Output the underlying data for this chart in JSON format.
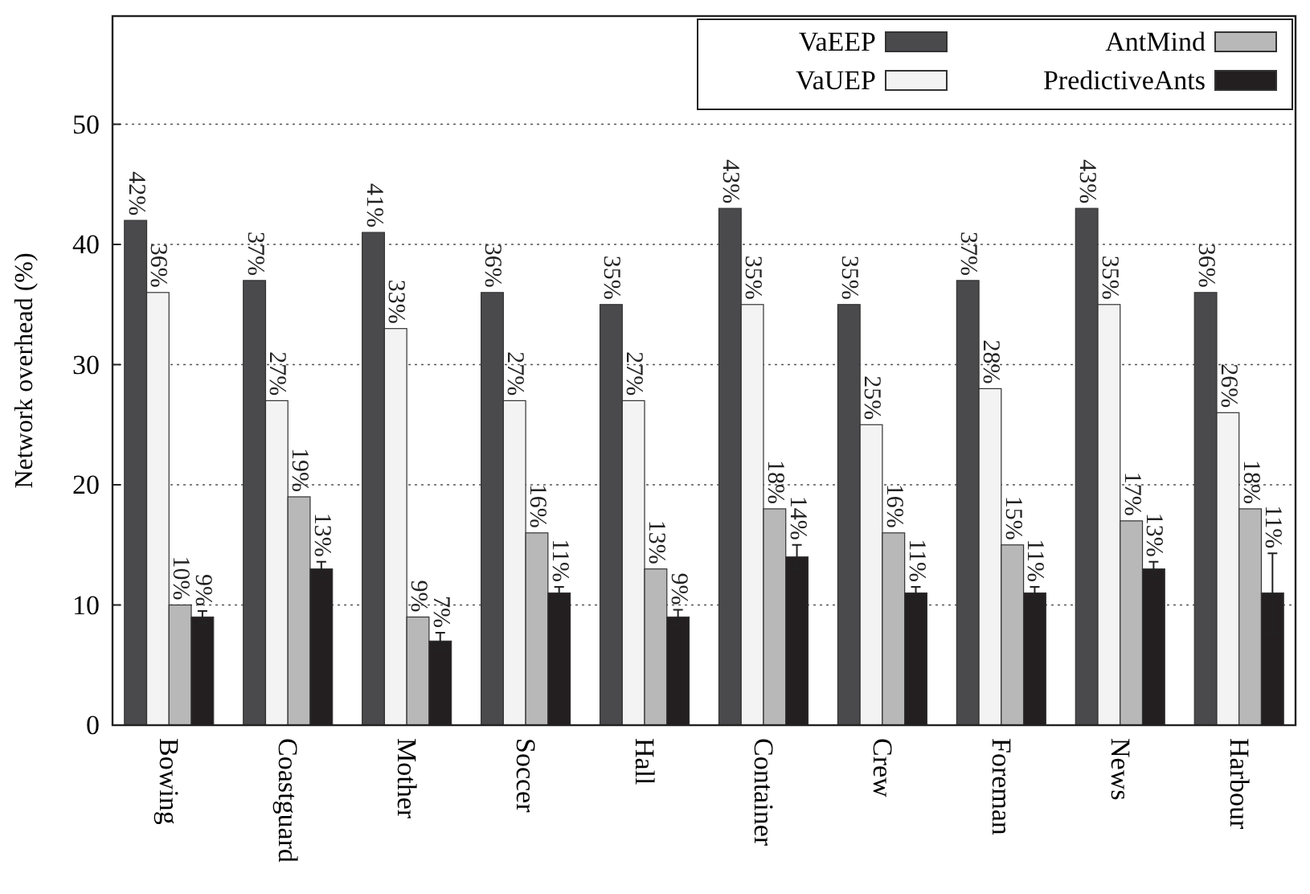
{
  "chart_data": {
    "type": "bar",
    "ylabel": "Network overhead (%)",
    "categories": [
      "Bowing",
      "Coastguard",
      "Mother",
      "Soccer",
      "Hall",
      "Container",
      "Crew",
      "Foreman",
      "News",
      "Harbour"
    ],
    "series": [
      {
        "name": "VaEEP",
        "color": "#4a4a4c",
        "values": [
          42,
          37,
          41,
          36,
          35,
          43,
          35,
          37,
          43,
          36
        ],
        "value_labels": [
          "42%",
          "37%",
          "41%",
          "36%",
          "35%",
          "43%",
          "35%",
          "37%",
          "43%",
          "36%"
        ]
      },
      {
        "name": "VaUEP",
        "color": "#f2f3f2",
        "values": [
          36,
          27,
          33,
          27,
          27,
          35,
          25,
          28,
          35,
          26
        ],
        "value_labels": [
          "36%",
          "27%",
          "33%",
          "27%",
          "27%",
          "35%",
          "25%",
          "28%",
          "35%",
          "26%"
        ]
      },
      {
        "name": "AntMind",
        "color": "#b8b8b8",
        "values": [
          10,
          19,
          9,
          16,
          13,
          18,
          16,
          15,
          17,
          18
        ],
        "value_labels": [
          "10%",
          "19%",
          "9%",
          "16%",
          "13%",
          "18%",
          "16%",
          "15%",
          "17%",
          "18%"
        ]
      },
      {
        "name": "PredictiveAnts",
        "color": "#231f20",
        "values": [
          9,
          13,
          7,
          11,
          9,
          14,
          11,
          11,
          13,
          11
        ],
        "value_labels": [
          "9%",
          "13%",
          "7%",
          "11%",
          "9%",
          "14%",
          "11%",
          "11%",
          "13%",
          "11%"
        ],
        "errors": [
          0.5,
          0.6,
          0.7,
          0.5,
          0.6,
          1,
          0.5,
          0.5,
          0.6,
          3.3
        ]
      }
    ],
    "ylim": [
      0,
      59
    ],
    "yticks": [
      0,
      10,
      20,
      30,
      40,
      50
    ],
    "grid": "y",
    "legend": "top right"
  }
}
